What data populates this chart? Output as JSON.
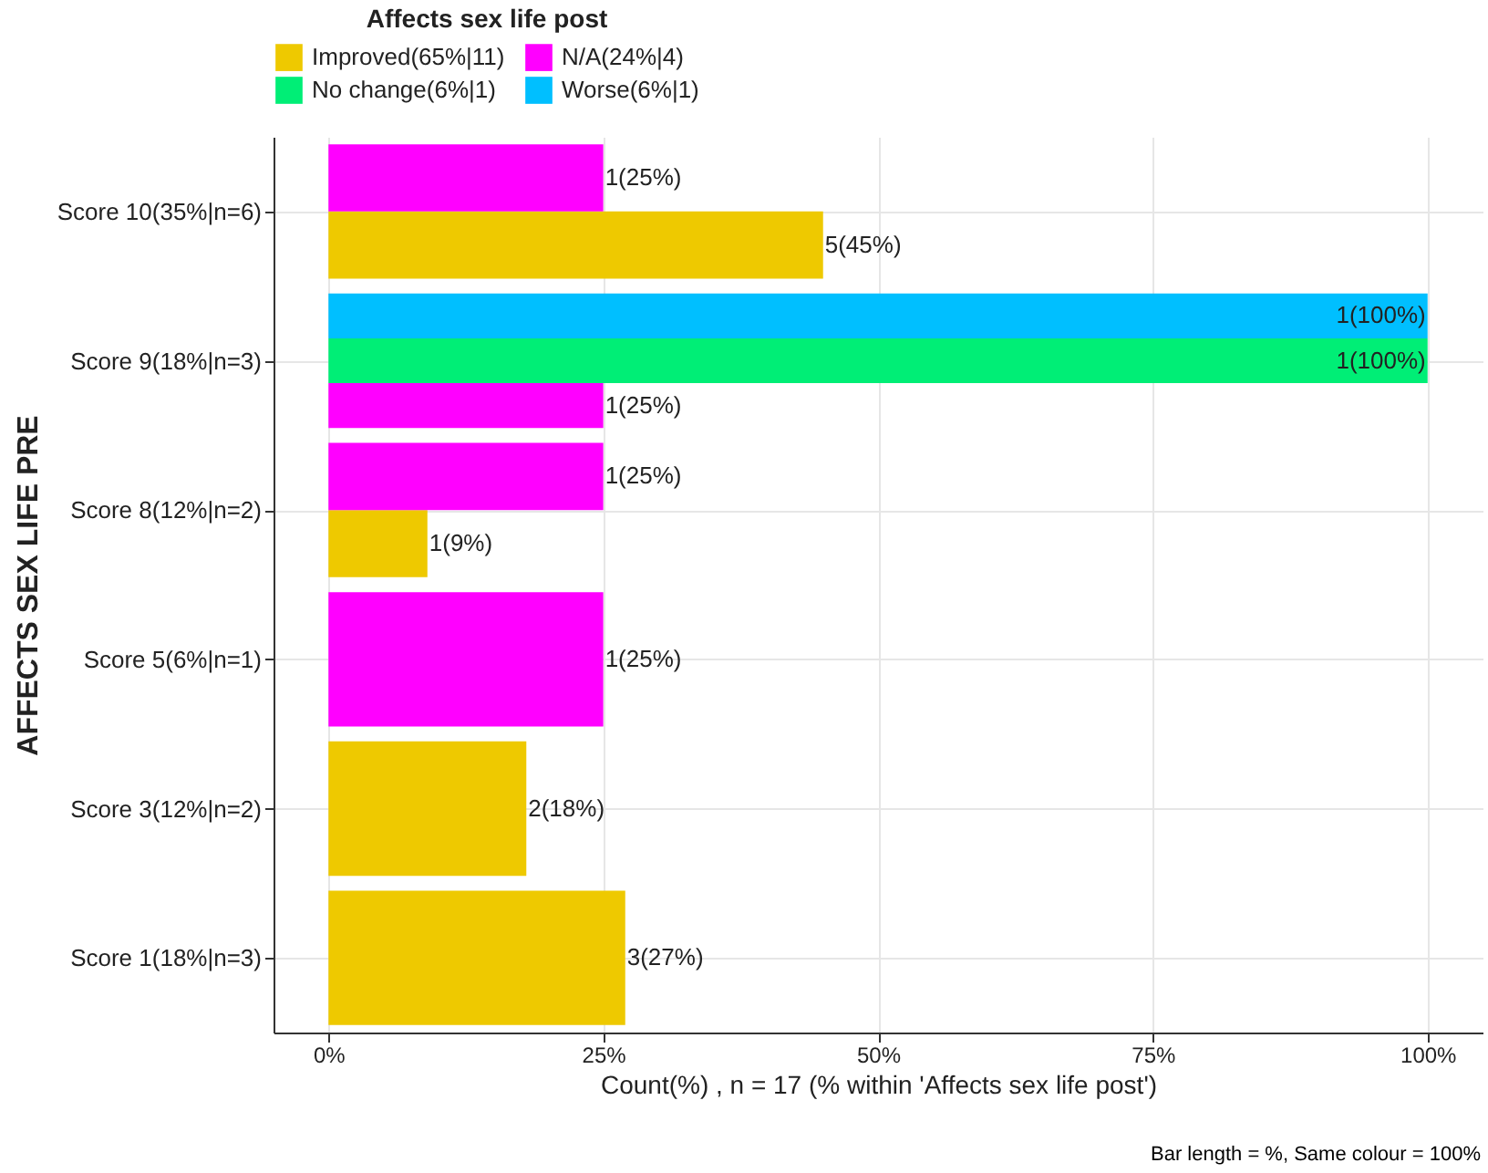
{
  "chart_data": {
    "type": "bar",
    "orientation": "horizontal",
    "ylabel": "AFFECTS SEX LIFE PRE",
    "xlabel": "Count(%) , n = 17 (% within 'Affects sex life post')",
    "legend_title": "Affects sex life post",
    "legend": "top",
    "grid": true,
    "categories": [
      "Score 10(35%|n=6)",
      "Score 9(18%|n=3)",
      "Score 8(12%|n=2)",
      "Score 5(6%|n=1)",
      "Score 3(12%|n=2)",
      "Score 1(18%|n=3)"
    ],
    "xlim": [
      -5,
      105
    ],
    "xticks": [
      {
        "value": 0,
        "label": "0%"
      },
      {
        "value": 25,
        "label": "25%"
      },
      {
        "value": 50,
        "label": "50%"
      },
      {
        "value": 75,
        "label": "75%"
      },
      {
        "value": 100,
        "label": "100%"
      }
    ],
    "series": [
      {
        "name": "Improved(65%|11)",
        "color": "#eec900",
        "values": [
          45,
          null,
          9,
          null,
          18,
          27
        ],
        "value_labels": [
          "5(45%)",
          null,
          "1(9%)",
          null,
          "2(18%)",
          "3(27%)"
        ]
      },
      {
        "name": "N/A(24%|4)",
        "color": "#ff00ff",
        "values": [
          25,
          25,
          25,
          25,
          null,
          null
        ],
        "value_labels": [
          "1(25%)",
          "1(25%)",
          "1(25%)",
          "1(25%)",
          null,
          null
        ]
      },
      {
        "name": "No change(6%|1)",
        "color": "#00ee76",
        "values": [
          null,
          100,
          null,
          null,
          null,
          null
        ],
        "value_labels": [
          null,
          "1(100%)",
          null,
          null,
          null,
          null
        ]
      },
      {
        "name": "Worse(6%|1)",
        "color": "#00bfff",
        "values": [
          null,
          100,
          null,
          null,
          null,
          null
        ],
        "value_labels": [
          null,
          "1(100%)",
          null,
          null,
          null,
          null
        ]
      }
    ],
    "annotations": [
      "Bar length = %, Same colour = 100%"
    ]
  }
}
